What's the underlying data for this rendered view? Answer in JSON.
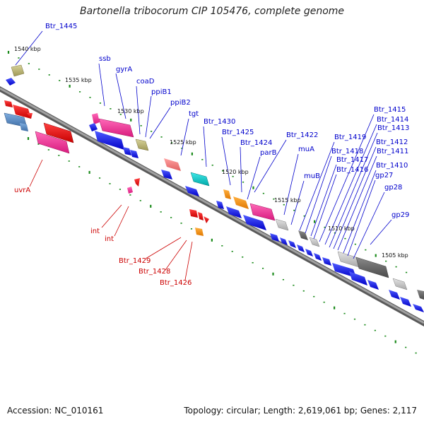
{
  "title": "Bartonella tribocorum CIP 105476, complete genome",
  "footer": {
    "accession": "Accession: NC_010161",
    "stats": "Topology: circular; Length: 2,619,061 bp; Genes: 2,117"
  },
  "colors": {
    "forward_strand": "#0000ee",
    "reverse_strand": "#ee0000",
    "backbone": "#888888",
    "tick": "#1a8a1a",
    "forward_label": "#0000cc",
    "reverse_label": "#cc0000"
  },
  "kbp_labels": [
    {
      "text": "1540 kbp"
    },
    {
      "text": "1535 kbp"
    },
    {
      "text": "1530 kbp"
    },
    {
      "text": "1525 kbp"
    },
    {
      "text": "1520 kbp"
    },
    {
      "text": "1515 kbp"
    },
    {
      "text": "1510 kbp"
    },
    {
      "text": "1505 kbp"
    }
  ],
  "forward_labels": [
    {
      "text": "Btr_1445"
    },
    {
      "text": "ssb"
    },
    {
      "text": "gyrA"
    },
    {
      "text": "coaD"
    },
    {
      "text": "ppiB1"
    },
    {
      "text": "ppiB2"
    },
    {
      "text": "tgt"
    },
    {
      "text": "Btr_1430"
    },
    {
      "text": "Btr_1425"
    },
    {
      "text": "Btr_1424"
    },
    {
      "text": "parB"
    },
    {
      "text": "Btr_1422"
    },
    {
      "text": "muA"
    },
    {
      "text": "muB"
    },
    {
      "text": "Btr_1419"
    },
    {
      "text": "Btr_1418"
    },
    {
      "text": "Btr_1417"
    },
    {
      "text": "Btr_1416"
    },
    {
      "text": "Btr_1415"
    },
    {
      "text": "Btr_1414"
    },
    {
      "text": "Btr_1413"
    },
    {
      "text": "Btr_1412"
    },
    {
      "text": "Btr_1411"
    },
    {
      "text": "Btr_1410"
    },
    {
      "text": "gp27"
    },
    {
      "text": "gp28"
    },
    {
      "text": "gp29"
    }
  ],
  "reverse_labels": [
    {
      "text": "uvrA"
    },
    {
      "text": "int"
    },
    {
      "text": "int"
    },
    {
      "text": "Btr_1429"
    },
    {
      "text": "Btr_1428"
    },
    {
      "text": "Btr_1426"
    }
  ]
}
